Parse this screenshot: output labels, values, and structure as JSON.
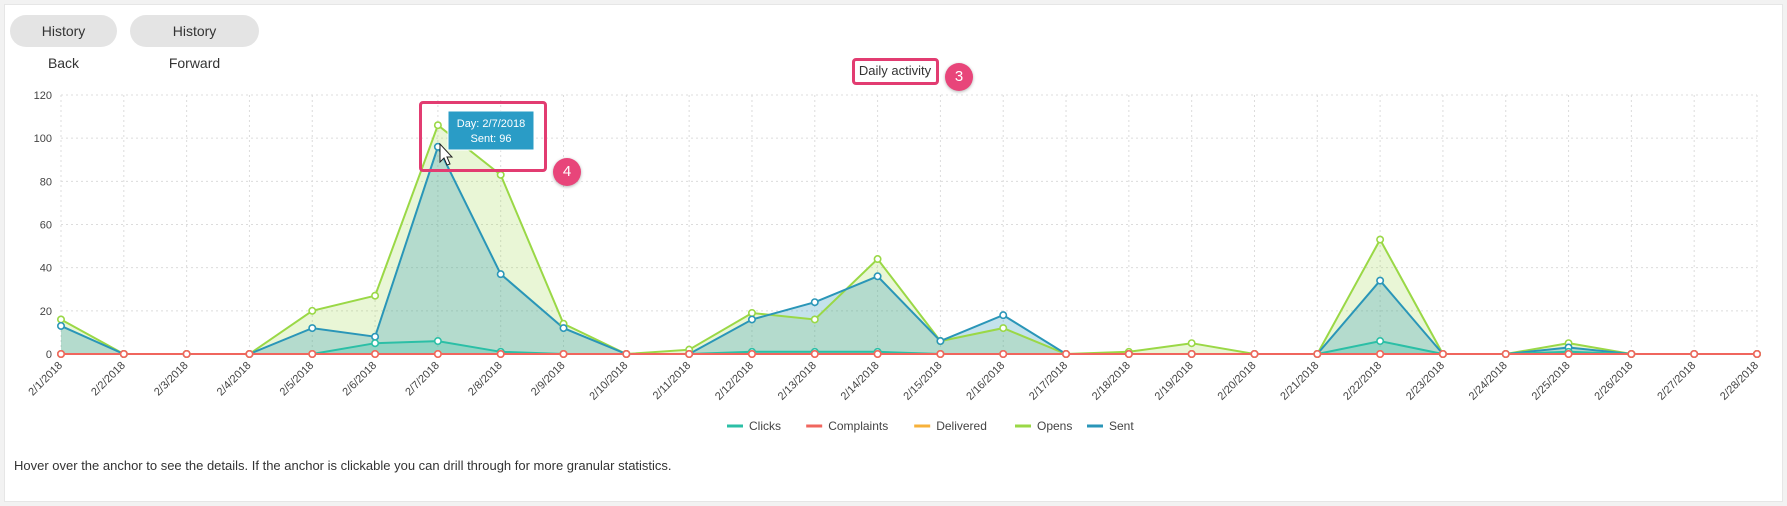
{
  "nav": {
    "back_label": "History Back",
    "forward_label": "History Forward"
  },
  "footnote": "Hover over the anchor to see the details. If the anchor is clickable you can drill through for more granular statistics.",
  "tooltip": {
    "line1": "Day: 2/7/2018",
    "line2": "Sent: 96"
  },
  "callouts": {
    "title_num": "3",
    "tooltip_num": "4"
  },
  "colors": {
    "clicks": "#2bbfa6",
    "complaints": "#f0665e",
    "delivered": "#f7b13a",
    "opens": "#9ad846",
    "sent": "#2a96b8",
    "tooltip_bg": "#2a9cc6",
    "highlight": "#e23c71"
  },
  "chart_data": {
    "type": "area",
    "title": "Daily activity",
    "xlabel": "",
    "ylabel": "",
    "ylim": [
      0,
      120
    ],
    "yticks": [
      "0",
      "20",
      "40",
      "60",
      "80",
      "100",
      "120"
    ],
    "grid": true,
    "legend": "bottom",
    "categories": [
      "2/1/2018",
      "2/2/2018",
      "2/3/2018",
      "2/4/2018",
      "2/5/2018",
      "2/6/2018",
      "2/7/2018",
      "2/8/2018",
      "2/9/2018",
      "2/10/2018",
      "2/11/2018",
      "2/12/2018",
      "2/13/2018",
      "2/14/2018",
      "2/15/2018",
      "2/16/2018",
      "2/17/2018",
      "2/18/2018",
      "2/19/2018",
      "2/20/2018",
      "2/21/2018",
      "2/22/2018",
      "2/23/2018",
      "2/24/2018",
      "2/25/2018",
      "2/26/2018",
      "2/27/2018",
      "2/28/2018"
    ],
    "series": [
      {
        "name": "Clicks",
        "values": [
          0,
          0,
          0,
          0,
          0,
          5,
          6,
          1,
          0,
          0,
          0,
          1,
          1,
          1,
          0,
          0,
          0,
          0,
          0,
          0,
          0,
          6,
          0,
          0,
          1,
          0,
          0,
          0
        ]
      },
      {
        "name": "Complaints",
        "values": [
          0,
          0,
          0,
          0,
          0,
          0,
          0,
          0,
          0,
          0,
          0,
          0,
          0,
          0,
          0,
          0,
          0,
          0,
          0,
          0,
          0,
          0,
          0,
          0,
          0,
          0,
          0,
          0
        ]
      },
      {
        "name": "Delivered",
        "values": [
          0,
          0,
          0,
          0,
          0,
          0,
          0,
          0,
          0,
          0,
          0,
          0,
          0,
          0,
          0,
          0,
          0,
          0,
          0,
          0,
          0,
          0,
          0,
          0,
          0,
          0,
          0,
          0
        ]
      },
      {
        "name": "Opens",
        "values": [
          16,
          0,
          0,
          0,
          20,
          27,
          106,
          83,
          14,
          0,
          2,
          19,
          16,
          44,
          6,
          12,
          0,
          1,
          5,
          0,
          0,
          53,
          0,
          0,
          5,
          0,
          0,
          0
        ]
      },
      {
        "name": "Sent",
        "values": [
          13,
          0,
          0,
          0,
          12,
          8,
          96,
          37,
          12,
          0,
          0,
          16,
          24,
          36,
          6,
          18,
          0,
          0,
          0,
          0,
          0,
          34,
          0,
          0,
          3,
          0,
          0,
          0
        ]
      }
    ]
  }
}
